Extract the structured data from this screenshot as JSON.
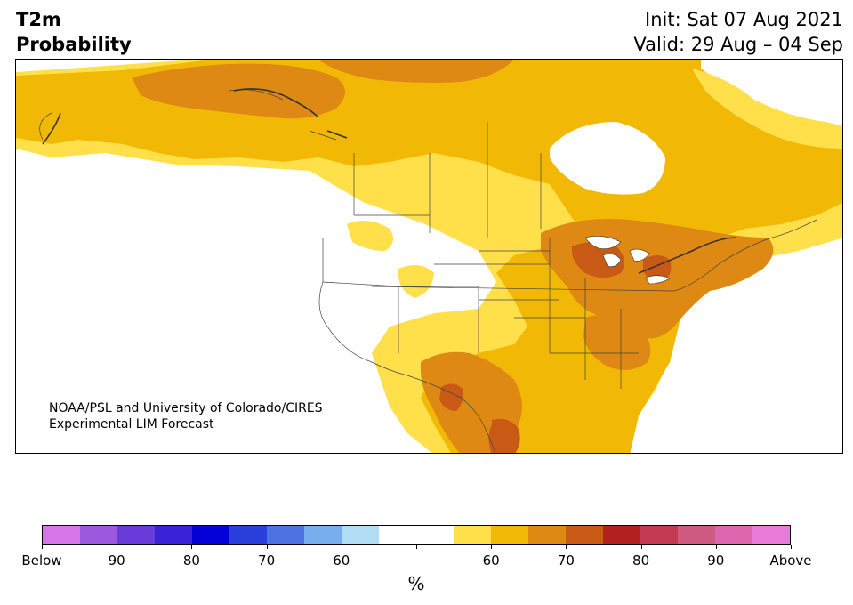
{
  "header": {
    "variable": "T2m",
    "product": "Probability",
    "init": "Init: Sat 07 Aug 2021",
    "valid": "Valid: 29 Aug – 04 Sep"
  },
  "credit": {
    "line1": "NOAA/PSL and University of Colorado/CIRES",
    "line2": "Experimental LIM Forecast"
  },
  "colorbar": {
    "unit": "%",
    "colors": [
      "#d675e8",
      "#9c59e0",
      "#6a3bd8",
      "#3a22d6",
      "#0400d8",
      "#2b3fdc",
      "#4d72e2",
      "#78aeee",
      "#b0dcf6",
      "#ffffff",
      "#ffffff",
      "#ffe04a",
      "#f2b806",
      "#de8913",
      "#c85a15",
      "#b22020",
      "#c43a52",
      "#cf5a82",
      "#dc67ae",
      "#ea7ad8"
    ],
    "tick_labels": [
      "Below",
      "90",
      "80",
      "70",
      "60",
      "",
      "60",
      "70",
      "80",
      "90",
      "Above"
    ]
  },
  "map": {
    "legend_categories": {
      "above_55_60": "#ffe04a",
      "above_60_65": "#f2b806",
      "above_65_70": "#de8913",
      "above_70_75": "#c85a15",
      "no_signal": "#ffffff"
    }
  }
}
